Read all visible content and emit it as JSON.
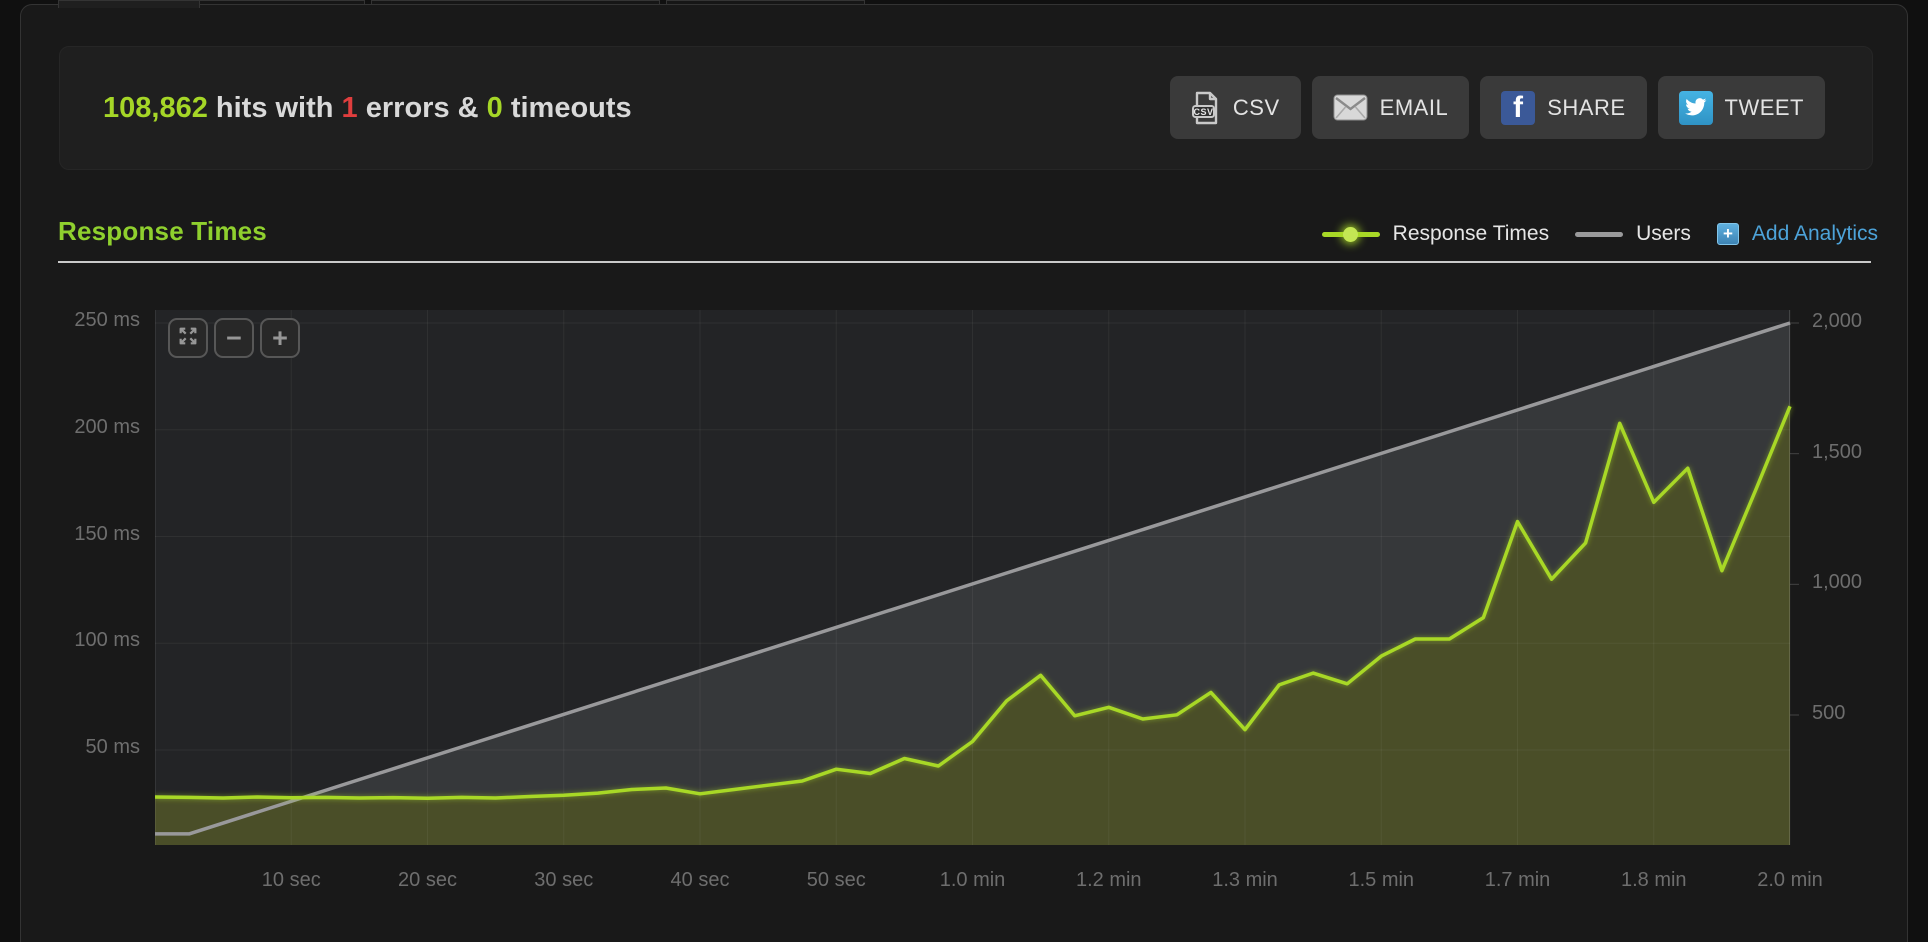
{
  "stats_bar": {
    "hits": "108,862",
    "hits_label": " hits with ",
    "errors": "1",
    "errors_label": " errors & ",
    "timeouts": "0",
    "timeouts_label": " timeouts",
    "buttons": [
      {
        "label": "CSV",
        "icon": "csv-file-icon"
      },
      {
        "label": "EMAIL",
        "icon": "envelope-icon"
      },
      {
        "label": "SHARE",
        "icon": "facebook-icon"
      },
      {
        "label": "TWEET",
        "icon": "twitter-icon"
      }
    ]
  },
  "section": {
    "title": "Response Times"
  },
  "legend": {
    "series": [
      {
        "label": "Response Times",
        "color": "#a8d827"
      },
      {
        "label": "Users",
        "color": "#9a9a9b"
      }
    ],
    "add_analytics": {
      "label": "Add Analytics",
      "color": "#4da3d9"
    }
  },
  "chart_controls": {
    "expand": "expand",
    "zoom_out": "−",
    "zoom_in": "+"
  },
  "colors": {
    "page_bg": "#101010",
    "panel_bg": "#191919",
    "stats_bar_bg": "#1f1f1f",
    "button_bg": "#3a3a3a",
    "accent_green": "#a5d627",
    "error_red": "#e03e3e",
    "heading_green": "#8fd02e",
    "link_blue": "#4da3d9",
    "facebook_blue": "#3b5998",
    "twitter_blue": "#35a8de"
  },
  "chart_data": {
    "type": "area",
    "title": "Response Times",
    "plot_bg": "#232426",
    "grid": "rgba(255,255,255,0.055)",
    "x_max_seconds": 120,
    "x_tick_seconds": [
      10,
      20,
      30,
      40,
      50,
      60,
      70,
      80,
      90,
      100,
      110,
      120
    ],
    "x_tick_labels": [
      "10 sec",
      "20 sec",
      "30 sec",
      "40 sec",
      "50 sec",
      "1.0 min",
      "1.2 min",
      "1.3 min",
      "1.5 min",
      "1.7 min",
      "1.8 min",
      "2.0 min"
    ],
    "left_axis": {
      "unit": "ms",
      "tick_labels": [
        "250 ms",
        "200 ms",
        "150 ms",
        "100 ms",
        "50 ms"
      ],
      "values": [
        250,
        200,
        150,
        100,
        50
      ]
    },
    "right_axis": {
      "unit": "users",
      "tick_labels": [
        "2,000",
        "1,500",
        "1,000",
        "500"
      ],
      "values": [
        2000,
        1500,
        1000,
        500
      ]
    },
    "series": [
      {
        "name": "Users",
        "axis": "right",
        "line_color": "#99999b",
        "fill_color": "#36383a",
        "points": [
          [
            0,
            45
          ],
          [
            2.5,
            45
          ],
          [
            120,
            2000
          ]
        ]
      },
      {
        "name": "Response Times",
        "axis": "left",
        "unit": "ms",
        "line_color": "#a8d827",
        "fill_color": "#4a4e28",
        "x_start": 0,
        "x_step": 2.5,
        "values": [
          28,
          27.8,
          27.5,
          28,
          27.6,
          27.8,
          27.5,
          27.7,
          27.4,
          27.8,
          27.5,
          28.2,
          28.8,
          29.8,
          31.5,
          32.2,
          29.5,
          31.5,
          33.5,
          35.5,
          41,
          39,
          46,
          42.5,
          54,
          73,
          85,
          66,
          70,
          64.5,
          66.5,
          77,
          59.5,
          80.5,
          86,
          81,
          94,
          102,
          102,
          112,
          157,
          130,
          147,
          203,
          166,
          182,
          134,
          172,
          211
        ]
      }
    ]
  }
}
